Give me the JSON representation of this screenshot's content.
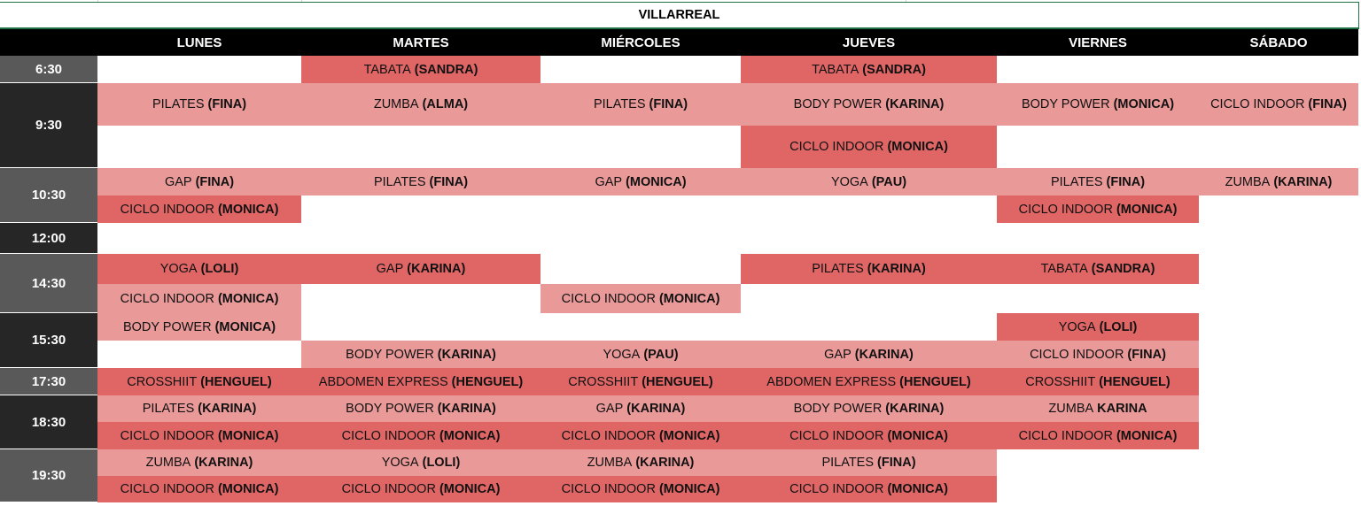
{
  "title": "VILLARREAL",
  "colors": {
    "header": "#000000",
    "time_gray": "#595959",
    "time_dark": "#262626",
    "class_dark": "#e06666",
    "class_light": "#ea9999"
  },
  "days": [
    "LUNES",
    "MARTES",
    "MIÉRCOLES",
    "JUEVES",
    "VIERNES",
    "SÁBADO"
  ],
  "times": [
    {
      "label": "6:30",
      "slots": [
        0
      ],
      "shade": "gray"
    },
    {
      "label": "9:30",
      "slots": [
        1,
        2
      ],
      "shade": "dark"
    },
    {
      "label": "10:30",
      "slots": [
        3,
        4
      ],
      "shade": "gray"
    },
    {
      "label": "12:00",
      "slots": [
        5
      ],
      "shade": "dark"
    },
    {
      "label": "14:30",
      "slots": [
        6,
        7
      ],
      "shade": "gray"
    },
    {
      "label": "15:30",
      "slots": [
        8,
        9
      ],
      "shade": "dark"
    },
    {
      "label": "17:30",
      "slots": [
        10
      ],
      "shade": "gray"
    },
    {
      "label": "18:30",
      "slots": [
        11,
        12
      ],
      "shade": "dark"
    },
    {
      "label": "19:30",
      "slots": [
        13,
        14
      ],
      "shade": "gray"
    }
  ],
  "classes": [
    {
      "day": 0,
      "slot": 1,
      "name": "PILATES",
      "instructor": "(FINA)",
      "shade": "light"
    },
    {
      "day": 0,
      "slot": 3,
      "name": "GAP",
      "instructor": "(FINA)",
      "shade": "light"
    },
    {
      "day": 0,
      "slot": 4,
      "name": "CICLO INDOOR",
      "instructor": "(MONICA)",
      "shade": "dark"
    },
    {
      "day": 0,
      "slot": 6,
      "name": "YOGA",
      "instructor": "(LOLI)",
      "shade": "dark"
    },
    {
      "day": 0,
      "slot": 7,
      "name": "CICLO INDOOR",
      "instructor": "(MONICA)",
      "shade": "light"
    },
    {
      "day": 0,
      "slot": 8,
      "name": "BODY POWER",
      "instructor": "(MONICA)",
      "shade": "light"
    },
    {
      "day": 0,
      "slot": 10,
      "name": "CROSSHIIT",
      "instructor": "(HENGUEL)",
      "shade": "dark"
    },
    {
      "day": 0,
      "slot": 11,
      "name": "PILATES",
      "instructor": "(KARINA)",
      "shade": "light"
    },
    {
      "day": 0,
      "slot": 12,
      "name": "CICLO INDOOR",
      "instructor": "(MONICA)",
      "shade": "dark"
    },
    {
      "day": 0,
      "slot": 13,
      "name": "ZUMBA",
      "instructor": "(KARINA)",
      "shade": "light"
    },
    {
      "day": 0,
      "slot": 14,
      "name": "CICLO INDOOR",
      "instructor": "(MONICA)",
      "shade": "dark"
    },
    {
      "day": 1,
      "slot": 0,
      "name": "TABATA",
      "instructor": "(SANDRA)",
      "shade": "dark"
    },
    {
      "day": 1,
      "slot": 1,
      "name": "ZUMBA",
      "instructor": "(ALMA)",
      "shade": "light"
    },
    {
      "day": 1,
      "slot": 3,
      "name": "PILATES",
      "instructor": "(FINA)",
      "shade": "light"
    },
    {
      "day": 1,
      "slot": 6,
      "name": "GAP",
      "instructor": "(KARINA)",
      "shade": "dark"
    },
    {
      "day": 1,
      "slot": 9,
      "name": "BODY POWER",
      "instructor": "(KARINA)",
      "shade": "light"
    },
    {
      "day": 1,
      "slot": 10,
      "name": "ABDOMEN EXPRESS",
      "instructor": "(HENGUEL)",
      "shade": "dark"
    },
    {
      "day": 1,
      "slot": 11,
      "name": "BODY POWER",
      "instructor": "(KARINA)",
      "shade": "light"
    },
    {
      "day": 1,
      "slot": 12,
      "name": "CICLO INDOOR",
      "instructor": "(MONICA)",
      "shade": "dark"
    },
    {
      "day": 1,
      "slot": 13,
      "name": "YOGA",
      "instructor": "(LOLI)",
      "shade": "light"
    },
    {
      "day": 1,
      "slot": 14,
      "name": "CICLO INDOOR",
      "instructor": "(MONICA)",
      "shade": "dark"
    },
    {
      "day": 2,
      "slot": 1,
      "name": "PILATES",
      "instructor": "(FINA)",
      "shade": "light"
    },
    {
      "day": 2,
      "slot": 3,
      "name": "GAP",
      "instructor": "(MONICA)",
      "shade": "light"
    },
    {
      "day": 2,
      "slot": 7,
      "name": "CICLO INDOOR",
      "instructor": "(MONICA)",
      "shade": "light"
    },
    {
      "day": 2,
      "slot": 9,
      "name": "YOGA",
      "instructor": "(PAU)",
      "shade": "light"
    },
    {
      "day": 2,
      "slot": 10,
      "name": "CROSSHIIT",
      "instructor": "(HENGUEL)",
      "shade": "dark"
    },
    {
      "day": 2,
      "slot": 11,
      "name": "GAP",
      "instructor": "(KARINA)",
      "shade": "light"
    },
    {
      "day": 2,
      "slot": 12,
      "name": "CICLO INDOOR",
      "instructor": "(MONICA)",
      "shade": "dark"
    },
    {
      "day": 2,
      "slot": 13,
      "name": "ZUMBA",
      "instructor": "(KARINA)",
      "shade": "light"
    },
    {
      "day": 2,
      "slot": 14,
      "name": "CICLO INDOOR",
      "instructor": "(MONICA)",
      "shade": "dark"
    },
    {
      "day": 3,
      "slot": 0,
      "name": "TABATA",
      "instructor": "(SANDRA)",
      "shade": "dark"
    },
    {
      "day": 3,
      "slot": 1,
      "name": "BODY POWER",
      "instructor": "(KARINA)",
      "shade": "light"
    },
    {
      "day": 3,
      "slot": 2,
      "name": "CICLO INDOOR",
      "instructor": "(MONICA)",
      "shade": "dark"
    },
    {
      "day": 3,
      "slot": 3,
      "name": "YOGA",
      "instructor": "(PAU)",
      "shade": "light"
    },
    {
      "day": 3,
      "slot": 6,
      "name": "PILATES",
      "instructor": "(KARINA)",
      "shade": "dark"
    },
    {
      "day": 3,
      "slot": 9,
      "name": "GAP",
      "instructor": "(KARINA)",
      "shade": "light"
    },
    {
      "day": 3,
      "slot": 10,
      "name": "ABDOMEN EXPRESS",
      "instructor": "(HENGUEL)",
      "shade": "dark"
    },
    {
      "day": 3,
      "slot": 11,
      "name": "BODY POWER",
      "instructor": "(KARINA)",
      "shade": "light"
    },
    {
      "day": 3,
      "slot": 12,
      "name": "CICLO INDOOR",
      "instructor": "(MONICA)",
      "shade": "dark"
    },
    {
      "day": 3,
      "slot": 13,
      "name": "PILATES",
      "instructor": "(FINA)",
      "shade": "light"
    },
    {
      "day": 3,
      "slot": 14,
      "name": "CICLO INDOOR",
      "instructor": "(MONICA)",
      "shade": "dark"
    },
    {
      "day": 4,
      "slot": 1,
      "name": "BODY POWER",
      "instructor": "(MONICA)",
      "shade": "light"
    },
    {
      "day": 4,
      "slot": 3,
      "name": "PILATES",
      "instructor": "(FINA)",
      "shade": "light"
    },
    {
      "day": 4,
      "slot": 4,
      "name": "CICLO INDOOR",
      "instructor": "(MONICA)",
      "shade": "dark"
    },
    {
      "day": 4,
      "slot": 6,
      "name": "TABATA",
      "instructor": "(SANDRA)",
      "shade": "dark"
    },
    {
      "day": 4,
      "slot": 8,
      "name": "YOGA",
      "instructor": "(LOLI)",
      "shade": "dark"
    },
    {
      "day": 4,
      "slot": 9,
      "name": "CICLO INDOOR",
      "instructor": "(FINA)",
      "shade": "light"
    },
    {
      "day": 4,
      "slot": 10,
      "name": "CROSSHIIT",
      "instructor": "(HENGUEL)",
      "shade": "dark"
    },
    {
      "day": 4,
      "slot": 11,
      "name": "ZUMBA",
      "instructor": "KARINA",
      "shade": "light"
    },
    {
      "day": 4,
      "slot": 12,
      "name": "CICLO INDOOR",
      "instructor": "(MONICA)",
      "shade": "dark"
    },
    {
      "day": 5,
      "slot": 1,
      "name": "CICLO INDOOR",
      "instructor": "(FINA)",
      "shade": "light"
    },
    {
      "day": 5,
      "slot": 3,
      "name": "ZUMBA",
      "instructor": "(KARINA)",
      "shade": "light"
    }
  ]
}
